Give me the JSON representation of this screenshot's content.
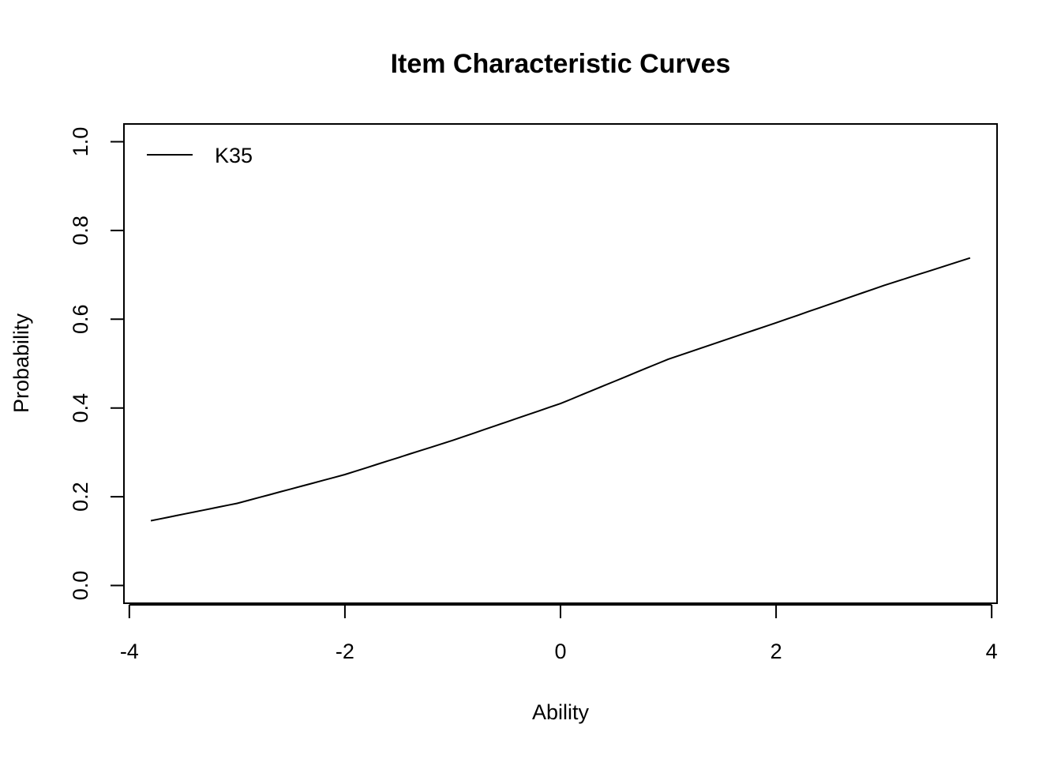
{
  "chart_data": {
    "type": "line",
    "title": "Item Characteristic Curves",
    "xlabel": "Ability",
    "ylabel": "Probability",
    "xlim": [
      -4.05,
      4.05
    ],
    "ylim": [
      -0.04,
      1.04
    ],
    "x_ticks": [
      -4,
      -2,
      0,
      2,
      4
    ],
    "y_ticks": [
      0.0,
      0.2,
      0.4,
      0.6,
      0.8,
      1.0
    ],
    "x_tick_labels": [
      "-4",
      "-2",
      "0",
      "2",
      "4"
    ],
    "y_tick_labels": [
      "0.0",
      "0.2",
      "0.4",
      "0.6",
      "0.8",
      "1.0"
    ],
    "grid": false,
    "legend": {
      "position": "top-left",
      "entries": [
        "K35"
      ]
    },
    "series": [
      {
        "name": "K35",
        "color": "#000000",
        "x": [
          -3.8,
          -3.0,
          -2.0,
          -1.0,
          0.0,
          1.0,
          2.0,
          3.0,
          3.8
        ],
        "y": [
          0.146,
          0.185,
          0.25,
          0.327,
          0.41,
          0.51,
          0.592,
          0.676,
          0.738
        ]
      }
    ]
  }
}
